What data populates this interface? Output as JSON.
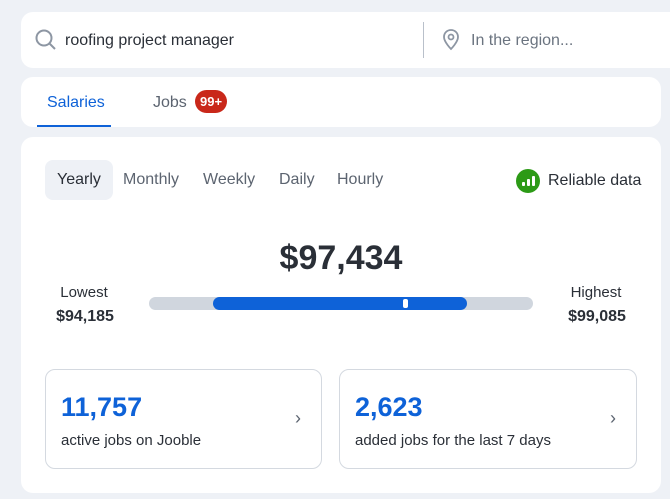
{
  "search": {
    "query": "roofing project manager",
    "location_placeholder": "In the region..."
  },
  "tabs": [
    {
      "label": "Salaries",
      "active": true
    },
    {
      "label": "Jobs",
      "badge": "99+"
    }
  ],
  "periods": [
    "Yearly",
    "Monthly",
    "Weekly",
    "Daily",
    "Hourly"
  ],
  "selected_period": "Yearly",
  "reliable": "Reliable data",
  "colors": {
    "accent": "#0e62d8",
    "badge": "#c9281a",
    "reliable": "#2c9a16"
  },
  "salary": {
    "amount": "$97,434",
    "lowest_label": "Lowest",
    "lowest": "$94,185",
    "highest_label": "Highest",
    "highest": "$99,085"
  },
  "stats": [
    {
      "number": "11,757",
      "desc": "active jobs on Jooble"
    },
    {
      "number": "2,623",
      "desc": "added jobs for the last 7 days"
    }
  ]
}
